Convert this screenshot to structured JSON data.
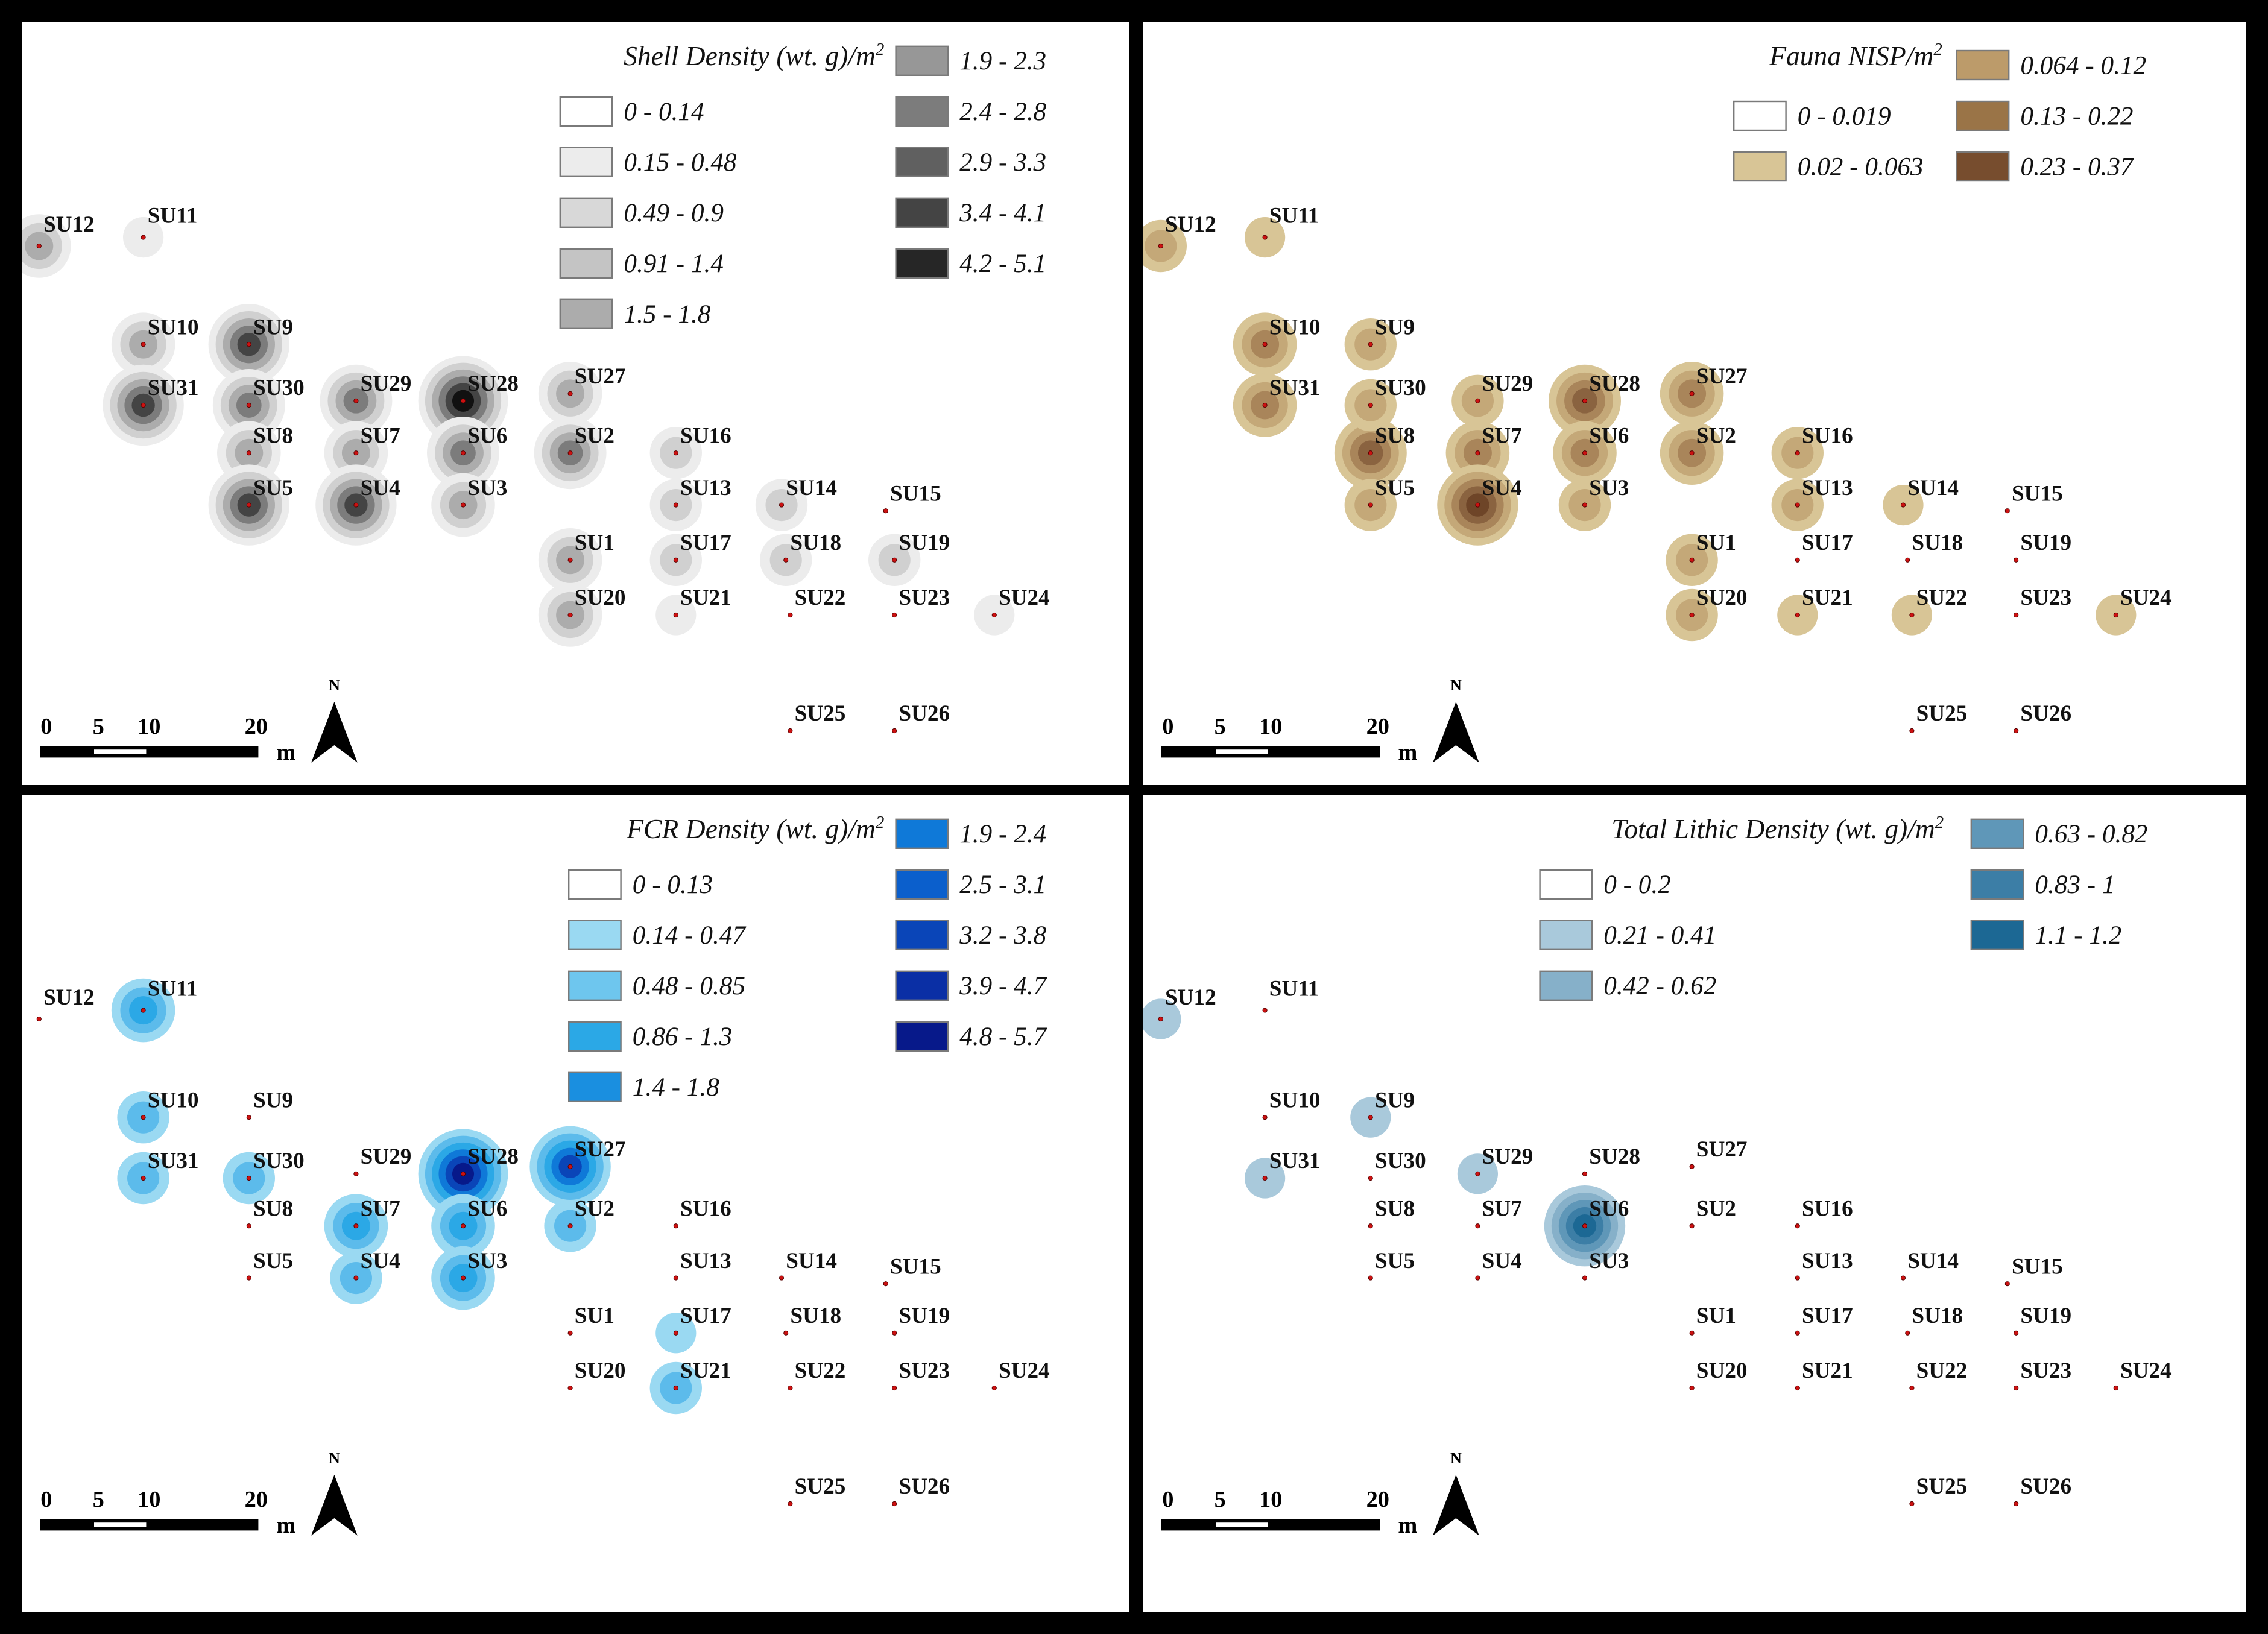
{
  "panels": [
    {
      "id": "shell",
      "legend": {
        "title_main": "Shell Density (wt. g)/m",
        "title_sup": "2",
        "column_left": [
          {
            "label": "0 - 0.14",
            "color": "#ffffff"
          },
          {
            "label": "0.15 - 0.48",
            "color": "#ececec"
          },
          {
            "label": "0.49 - 0.9",
            "color": "#d8d8d8"
          },
          {
            "label": "0.91 - 1.4",
            "color": "#c4c4c4"
          },
          {
            "label": "1.5 - 1.8",
            "color": "#acacac"
          }
        ],
        "column_right": [
          {
            "label": "1.9 - 2.3",
            "color": "#979797"
          },
          {
            "label": "2.4 - 2.8",
            "color": "#7c7c7c"
          },
          {
            "label": "2.9 - 3.3",
            "color": "#606060"
          },
          {
            "label": "3.4 - 4.1",
            "color": "#444444"
          },
          {
            "label": "4.2 - 5.1",
            "color": "#262626"
          }
        ]
      },
      "blob_ramp": [
        "#ececec",
        "#d0d0d0",
        "#acacac",
        "#7c7c7c",
        "#444444",
        "#111111"
      ]
    },
    {
      "id": "fauna",
      "legend": {
        "title_main": "Fauna NISP/m",
        "title_sup": "2",
        "column_left": [
          {
            "label": "0 - 0.019",
            "color": "#ffffff"
          },
          {
            "label": "0.02 - 0.063",
            "color": "#d8c596"
          }
        ],
        "column_right": [
          {
            "label": "0.064 - 0.12",
            "color": "#bc9b6a"
          },
          {
            "label": "0.13 - 0.22",
            "color": "#9a7447"
          },
          {
            "label": "0.23 - 0.37",
            "color": "#774d2e"
          }
        ]
      },
      "blob_ramp": [
        "#d8c596",
        "#c4a878",
        "#a9855a",
        "#8a6340",
        "#6e4528"
      ]
    },
    {
      "id": "fcr",
      "legend": {
        "title_main": "FCR Density (wt. g)/m",
        "title_sup": "2",
        "column_left": [
          {
            "label": "0 - 0.13",
            "color": "#ffffff"
          },
          {
            "label": "0.14 - 0.47",
            "color": "#9ad9f2"
          },
          {
            "label": "0.48 - 0.85",
            "color": "#6ec6ee"
          },
          {
            "label": "0.86 - 1.3",
            "color": "#2ba8e6"
          },
          {
            "label": "1.4 - 1.8",
            "color": "#1a8fe0"
          }
        ],
        "column_right": [
          {
            "label": "1.9 - 2.4",
            "color": "#0f79d8"
          },
          {
            "label": "2.5 - 3.1",
            "color": "#0b5fcc"
          },
          {
            "label": "3.2 - 3.8",
            "color": "#0a45b8"
          },
          {
            "label": "3.9 - 4.7",
            "color": "#0a2fa5"
          },
          {
            "label": "4.8 - 5.7",
            "color": "#07198a"
          }
        ]
      },
      "blob_ramp": [
        "#9ad9f2",
        "#5cbbeb",
        "#2ba8e6",
        "#0f79d8",
        "#0a45b8",
        "#07198a"
      ]
    },
    {
      "id": "lithic",
      "legend": {
        "title_main": "Total Lithic Density (wt. g)/m",
        "title_sup": "2",
        "column_left": [
          {
            "label": "0 - 0.2",
            "color": "#ffffff"
          },
          {
            "label": "0.21 - 0.41",
            "color": "#a9c9db"
          },
          {
            "label": "0.42 - 0.62",
            "color": "#86b0c9"
          }
        ],
        "column_right": [
          {
            "label": "0.63 - 0.82",
            "color": "#5f97b8"
          },
          {
            "label": "0.83 - 1",
            "color": "#3c7ea6"
          },
          {
            "label": "1.1 - 1.2",
            "color": "#1c6894"
          }
        ]
      },
      "blob_ramp": [
        "#a9c9db",
        "#86b0c9",
        "#5f97b8",
        "#3c7ea6",
        "#1c6894"
      ]
    }
  ],
  "units": [
    "SU1",
    "SU2",
    "SU3",
    "SU4",
    "SU5",
    "SU6",
    "SU7",
    "SU8",
    "SU9",
    "SU10",
    "SU11",
    "SU12",
    "SU13",
    "SU14",
    "SU15",
    "SU16",
    "SU17",
    "SU18",
    "SU19",
    "SU20",
    "SU21",
    "SU22",
    "SU23",
    "SU24",
    "SU25",
    "SU26",
    "SU27",
    "SU28",
    "SU29",
    "SU30",
    "SU31"
  ],
  "densities": {
    "shell": {
      "SU12": 3,
      "SU11": 1,
      "SU10": 3,
      "SU9": 5,
      "SU31": 5,
      "SU30": 4,
      "SU8": 3,
      "SU5": 5,
      "SU29": 4,
      "SU7": 3,
      "SU4": 5,
      "SU28": 6,
      "SU6": 4,
      "SU3": 3,
      "SU27": 3,
      "SU2": 4,
      "SU16": 2,
      "SU13": 2,
      "SU14": 2,
      "SU17": 2,
      "SU18": 2,
      "SU19": 2,
      "SU1": 3,
      "SU20": 3,
      "SU21": 1,
      "SU24": 1
    },
    "fauna": {
      "SU12": 2,
      "SU11": 1,
      "SU10": 3,
      "SU31": 3,
      "SU9": 2,
      "SU8": 4,
      "SU30": 2,
      "SU5": 2,
      "SU29": 2,
      "SU7": 3,
      "SU4": 5,
      "SU28": 4,
      "SU6": 3,
      "SU3": 2,
      "SU27": 3,
      "SU2": 3,
      "SU16": 2,
      "SU13": 2,
      "SU14": 1,
      "SU1": 2,
      "SU20": 2,
      "SU21": 1,
      "SU22": 1,
      "SU24": 1
    },
    "fcr": {
      "SU11": 3,
      "SU10": 2,
      "SU31": 2,
      "SU30": 2,
      "SU7": 3,
      "SU4": 2,
      "SU28": 6,
      "SU6": 3,
      "SU3": 3,
      "SU27": 5,
      "SU2": 2,
      "SU17": 1,
      "SU21": 2
    },
    "lithic": {
      "SU12": 1,
      "SU9": 1,
      "SU31": 1,
      "SU29": 1,
      "SU6": 5
    }
  },
  "scale_bar": {
    "ticks": [
      "0",
      "5",
      "10",
      "20"
    ],
    "unit": "m"
  },
  "north_label": "N"
}
